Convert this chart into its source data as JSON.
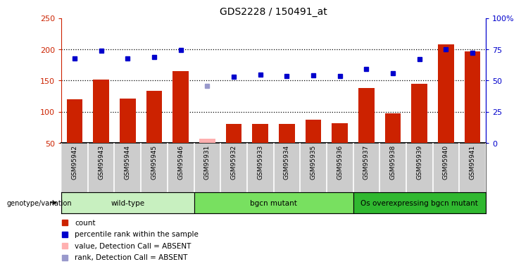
{
  "title": "GDS2228 / 150491_at",
  "samples": [
    "GSM95942",
    "GSM95943",
    "GSM95944",
    "GSM95945",
    "GSM95946",
    "GSM95931",
    "GSM95932",
    "GSM95933",
    "GSM95934",
    "GSM95935",
    "GSM95936",
    "GSM95937",
    "GSM95938",
    "GSM95939",
    "GSM95940",
    "GSM95941"
  ],
  "bar_values": [
    120,
    152,
    121,
    134,
    165,
    57,
    81,
    81,
    81,
    87,
    82,
    138,
    97,
    145,
    208,
    197
  ],
  "bar_absent": [
    false,
    false,
    false,
    false,
    false,
    true,
    false,
    false,
    false,
    false,
    false,
    false,
    false,
    false,
    false,
    false
  ],
  "percentile_values": [
    185,
    198,
    186,
    188,
    199,
    142,
    156,
    159,
    157,
    158,
    157,
    168,
    162,
    184,
    200,
    195
  ],
  "percentile_absent": [
    false,
    false,
    false,
    false,
    false,
    true,
    false,
    false,
    false,
    false,
    false,
    false,
    false,
    false,
    false,
    false
  ],
  "ylim": [
    50,
    250
  ],
  "yticks_left": [
    50,
    100,
    150,
    200,
    250
  ],
  "pct_ticks": [
    0,
    25,
    50,
    75,
    100
  ],
  "pct_labels": [
    "0",
    "25",
    "50",
    "75",
    "100%"
  ],
  "groups": [
    {
      "label": "wild-type",
      "start": 0,
      "end": 5,
      "color": "#c8f0c0"
    },
    {
      "label": "bgcn mutant",
      "start": 5,
      "end": 11,
      "color": "#78e060"
    },
    {
      "label": "Os overexpressing bgcn mutant",
      "start": 11,
      "end": 16,
      "color": "#30b830"
    }
  ],
  "bar_color": "#cc2200",
  "bar_color_absent": "#ffb0b0",
  "dot_color": "#0000cc",
  "dot_color_absent": "#9999cc",
  "bg_color": "#ffffff",
  "cell_bg": "#cccccc",
  "genotype_label": "genotype/variation",
  "legend": [
    {
      "label": "count",
      "color": "#cc2200"
    },
    {
      "label": "percentile rank within the sample",
      "color": "#0000cc"
    },
    {
      "label": "value, Detection Call = ABSENT",
      "color": "#ffb0b0"
    },
    {
      "label": "rank, Detection Call = ABSENT",
      "color": "#9999cc"
    }
  ]
}
